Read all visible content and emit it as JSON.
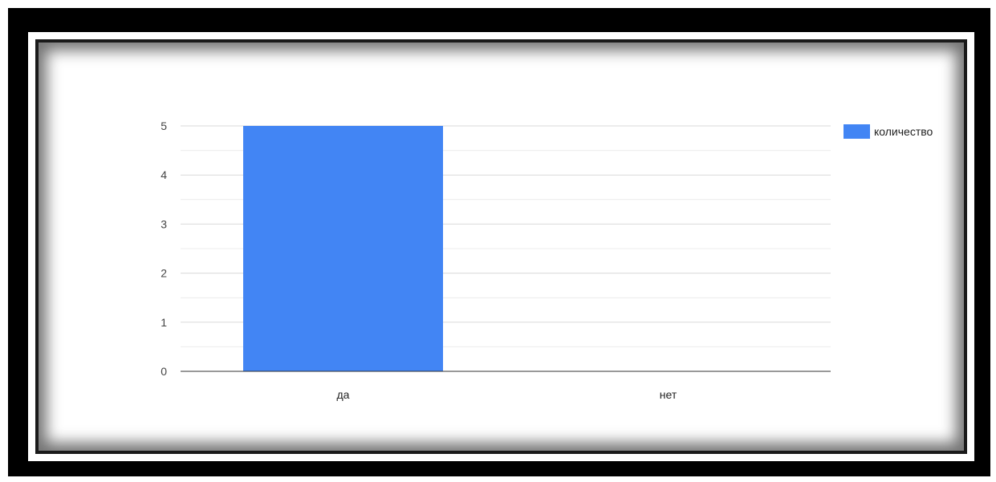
{
  "chart_data": {
    "type": "bar",
    "categories": [
      "да",
      "нет"
    ],
    "series": [
      {
        "name": "количество",
        "values": [
          5,
          0
        ]
      }
    ],
    "ylim": [
      0,
      5
    ],
    "yticks": [
      "0",
      "1",
      "2",
      "3",
      "4",
      "5"
    ],
    "title": "",
    "xlabel": "",
    "ylabel": "",
    "grid": true,
    "legend_position": "right",
    "colors": {
      "bar": "#4285f4",
      "grid": "#d9d9d9",
      "minor_grid": "#ececec",
      "baseline": "#333333"
    }
  }
}
